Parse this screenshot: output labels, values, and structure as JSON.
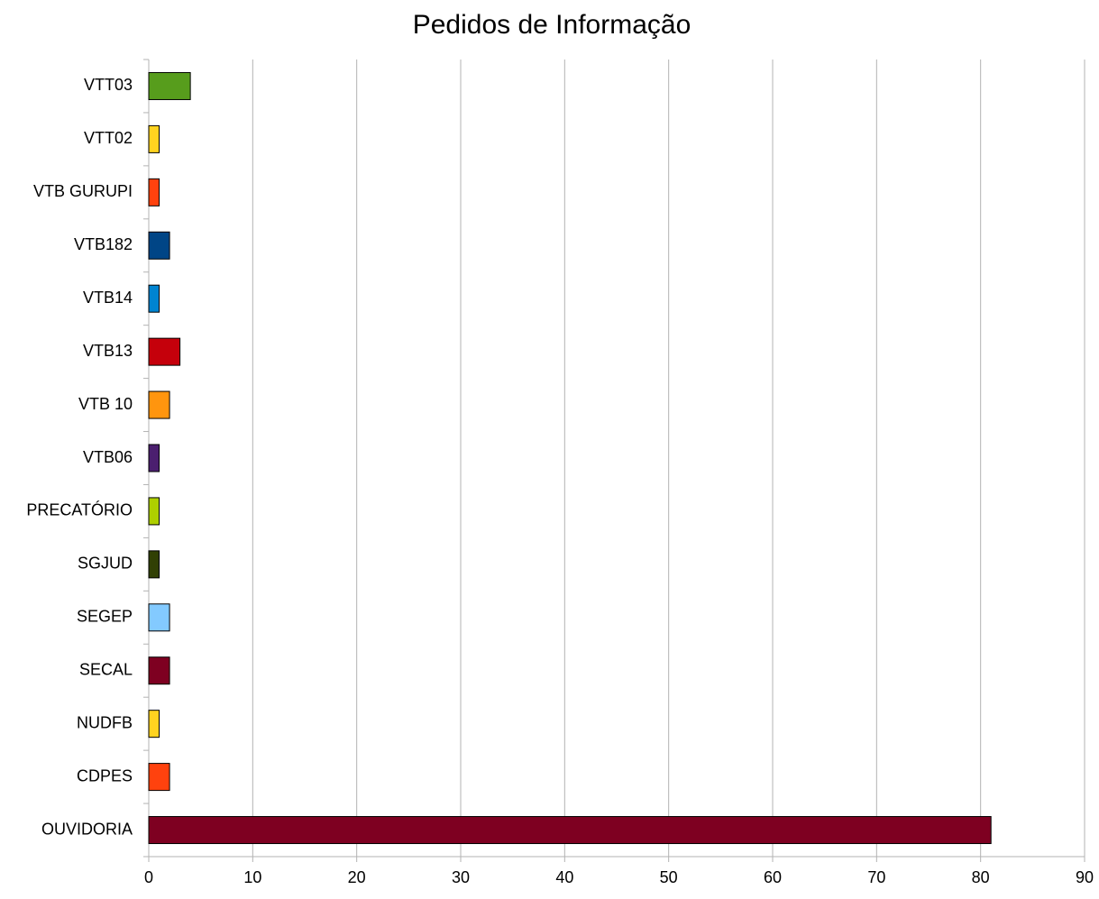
{
  "chart_data": {
    "type": "bar",
    "orientation": "horizontal",
    "title": "Pedidos de Informação",
    "categories": [
      "VTT03",
      "VTT02",
      "VTB GURUPI",
      "VTB182",
      "VTB14",
      "VTB13",
      "VTB 10",
      "VTB06",
      "PRECATÓRIO",
      "SGJUD",
      "SEGEP",
      "SECAL",
      "NUDFB",
      "CDPES",
      "OUVIDORIA"
    ],
    "values": [
      4,
      1,
      1,
      2,
      1,
      3,
      2,
      1,
      1,
      1,
      2,
      2,
      1,
      2,
      81
    ],
    "colors": [
      "#579d1c",
      "#ffd320",
      "#ff420e",
      "#004586",
      "#0084d1",
      "#c5000b",
      "#ff950e",
      "#4b1f6f",
      "#aecf00",
      "#314004",
      "#83caff",
      "#7e0021",
      "#ffd320",
      "#ff420e",
      "#7e0021"
    ],
    "xlim": [
      0,
      90
    ],
    "xticks": [
      0,
      10,
      20,
      30,
      40,
      50,
      60,
      70,
      80,
      90
    ],
    "grid": true
  }
}
